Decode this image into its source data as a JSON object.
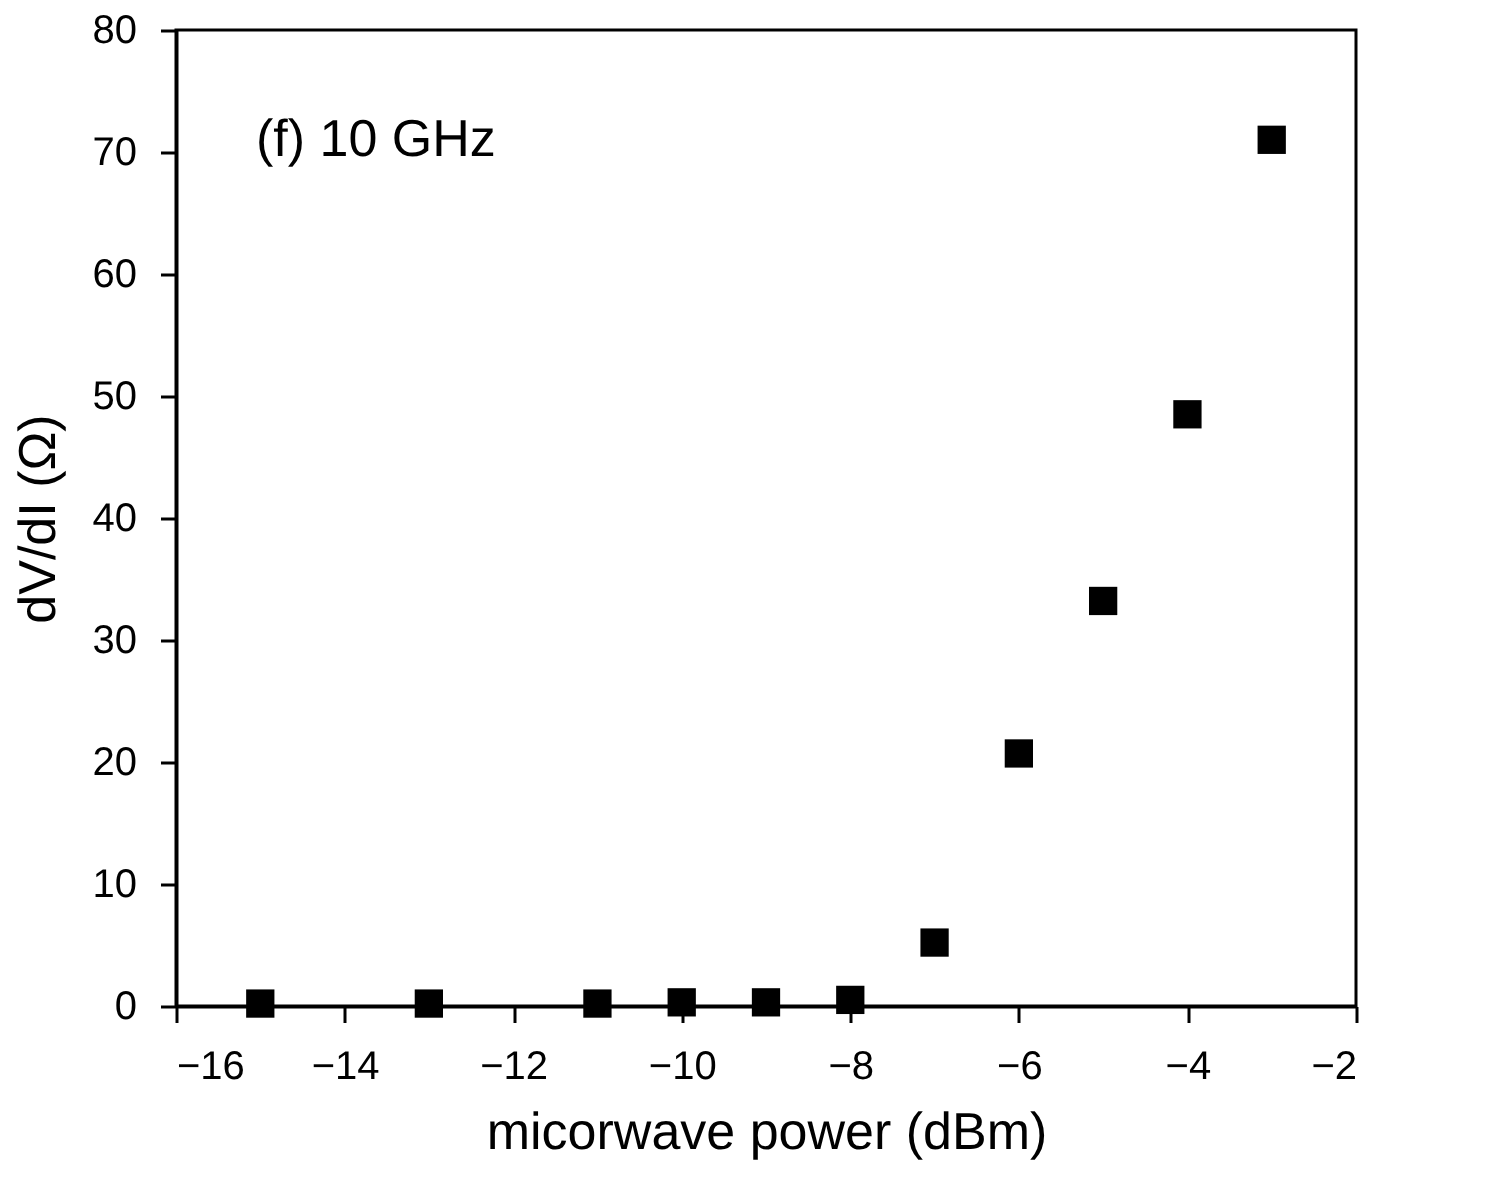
{
  "chart_data": {
    "type": "scatter",
    "xlabel": "micorwave power (dBm)",
    "ylabel": "dV/dI (Ω)",
    "annotations": [
      "(f) 10 GHz"
    ],
    "x": [
      -15,
      -13,
      -11,
      -10,
      -9,
      -8,
      -7,
      -6,
      -5,
      -4,
      -3
    ],
    "series": [
      {
        "color": "#000000",
        "values": [
          0.2,
          0.2,
          0.2,
          0.3,
          0.3,
          0.5,
          5.2,
          20.7,
          33.2,
          48.5,
          71
        ]
      }
    ],
    "marker": "square",
    "grid": false,
    "xlim": [
      -16,
      -2
    ],
    "xticks": [
      -16,
      -14,
      -12,
      -10,
      -8,
      -6,
      -4,
      -2
    ],
    "ylim": [
      0,
      80
    ],
    "yticks": [
      0,
      10,
      20,
      30,
      40,
      50,
      60,
      70,
      80
    ]
  }
}
